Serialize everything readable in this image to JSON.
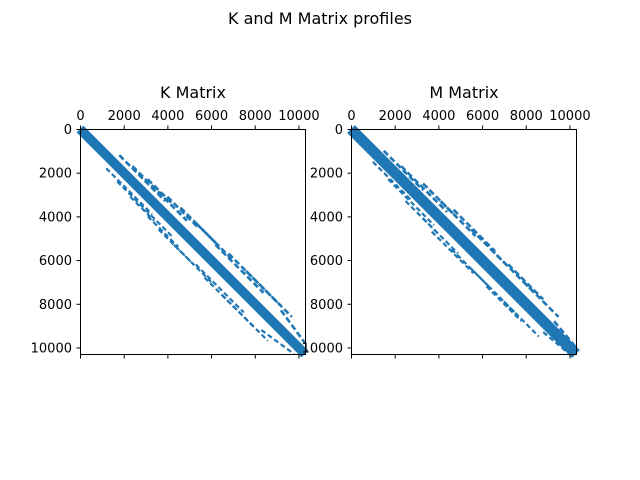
{
  "figure": {
    "suptitle": "K and M Matrix profiles"
  },
  "chart_data": [
    {
      "type": "heatmap",
      "subtype": "sparsity-pattern",
      "title": "K Matrix",
      "xlim": [
        0,
        10300
      ],
      "ylim": [
        10300,
        0
      ],
      "x_ticks": [
        0,
        2000,
        4000,
        6000,
        8000,
        10000
      ],
      "x_tick_labels": [
        "0",
        "2000",
        "4000",
        "6000",
        "8000",
        "10000"
      ],
      "x_tick_position": "top",
      "y_ticks": [
        0,
        2000,
        4000,
        6000,
        8000,
        10000
      ],
      "y_tick_labels": [
        "0",
        "2000",
        "4000",
        "6000",
        "8000",
        "10000"
      ],
      "grid": false,
      "color": "#1f77b4",
      "main_band": {
        "from": 0,
        "to": 10300,
        "half_width": 220
      },
      "off_diagonal_segments": [
        {
          "row_start": 1200,
          "col_start": 1800,
          "row_end": 3300,
          "col_end": 3900
        },
        {
          "row_start": 1700,
          "col_start": 2400,
          "row_end": 4200,
          "col_end": 4900
        },
        {
          "row_start": 2300,
          "col_start": 3100,
          "row_end": 3400,
          "col_end": 4200
        },
        {
          "row_start": 3100,
          "col_start": 4000,
          "row_end": 4500,
          "col_end": 5400
        },
        {
          "row_start": 3600,
          "col_start": 4600,
          "row_end": 5200,
          "col_end": 6200
        },
        {
          "row_start": 4300,
          "col_start": 5300,
          "row_end": 6000,
          "col_end": 7000
        },
        {
          "row_start": 5300,
          "col_start": 6200,
          "row_end": 7500,
          "col_end": 8400
        },
        {
          "row_start": 5700,
          "col_start": 6800,
          "row_end": 8000,
          "col_end": 9100
        },
        {
          "row_start": 6500,
          "col_start": 7600,
          "row_end": 8600,
          "col_end": 9700
        },
        {
          "row_start": 8300,
          "col_start": 9200,
          "row_end": 9800,
          "col_end": 10300
        }
      ]
    },
    {
      "type": "heatmap",
      "subtype": "sparsity-pattern",
      "title": "M Matrix",
      "xlim": [
        0,
        10300
      ],
      "ylim": [
        10300,
        0
      ],
      "x_ticks": [
        0,
        2000,
        4000,
        6000,
        8000,
        10000
      ],
      "x_tick_labels": [
        "0",
        "2000",
        "4000",
        "6000",
        "8000",
        "10000"
      ],
      "x_tick_position": "top",
      "y_ticks": [
        0,
        2000,
        4000,
        6000,
        8000,
        10000
      ],
      "y_tick_labels": [
        "0",
        "2000",
        "4000",
        "6000",
        "8000",
        "10000"
      ],
      "grid": false,
      "color": "#1f77b4",
      "main_band": {
        "from": 0,
        "to": 10300,
        "half_width": 250
      },
      "off_diagonal_segments": [
        {
          "row_start": 1000,
          "col_start": 1500,
          "row_end": 2800,
          "col_end": 3300
        },
        {
          "row_start": 1700,
          "col_start": 2300,
          "row_end": 3800,
          "col_end": 4400
        },
        {
          "row_start": 2500,
          "col_start": 3300,
          "row_end": 3900,
          "col_end": 4700
        },
        {
          "row_start": 3300,
          "col_start": 4100,
          "row_end": 4900,
          "col_end": 5700
        },
        {
          "row_start": 3700,
          "col_start": 4700,
          "row_end": 5600,
          "col_end": 6600
        },
        {
          "row_start": 4600,
          "col_start": 5500,
          "row_end": 6300,
          "col_end": 7200
        },
        {
          "row_start": 5500,
          "col_start": 6400,
          "row_end": 7500,
          "col_end": 8400
        },
        {
          "row_start": 6200,
          "col_start": 7200,
          "row_end": 7800,
          "col_end": 8800
        },
        {
          "row_start": 7000,
          "col_start": 7900,
          "row_end": 8600,
          "col_end": 9500
        },
        {
          "row_start": 8800,
          "col_start": 9300,
          "row_end": 10000,
          "col_end": 10300
        }
      ]
    }
  ]
}
